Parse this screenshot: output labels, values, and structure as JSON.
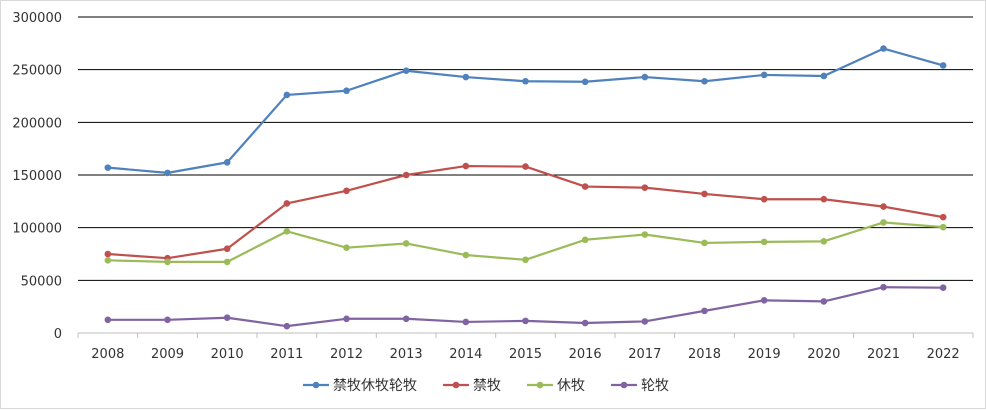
{
  "chart_data": {
    "type": "line",
    "x": [
      "2008",
      "2009",
      "2010",
      "2011",
      "2012",
      "2013",
      "2014",
      "2015",
      "2016",
      "2017",
      "2018",
      "2019",
      "2020",
      "2021",
      "2022"
    ],
    "ylim": [
      0,
      300000
    ],
    "yticks": [
      "0",
      "50000",
      "100000",
      "150000",
      "200000",
      "250000",
      "300000"
    ],
    "grid": true,
    "legend_position": "bottom",
    "series": [
      {
        "name": "禁牧休牧轮牧",
        "color": "#4f81bd",
        "values": [
          157000,
          152000,
          162000,
          226000,
          230000,
          249000,
          243000,
          239000,
          238500,
          243000,
          239000,
          245000,
          244000,
          270000,
          254000
        ]
      },
      {
        "name": "禁牧",
        "color": "#c0504d",
        "values": [
          75000,
          71000,
          80000,
          123000,
          135000,
          150000,
          158500,
          158000,
          139000,
          138000,
          132000,
          127000,
          127000,
          120000,
          110000
        ]
      },
      {
        "name": "休牧",
        "color": "#9bbb59",
        "values": [
          69000,
          67500,
          67500,
          96500,
          81000,
          85000,
          74000,
          69500,
          88500,
          93500,
          85500,
          86500,
          87000,
          105000,
          100500
        ]
      },
      {
        "name": "轮牧",
        "color": "#8064a2",
        "values": [
          12500,
          12500,
          14500,
          6500,
          13500,
          13500,
          10500,
          11500,
          9500,
          11000,
          21000,
          31000,
          30000,
          43500,
          43000
        ]
      }
    ]
  }
}
